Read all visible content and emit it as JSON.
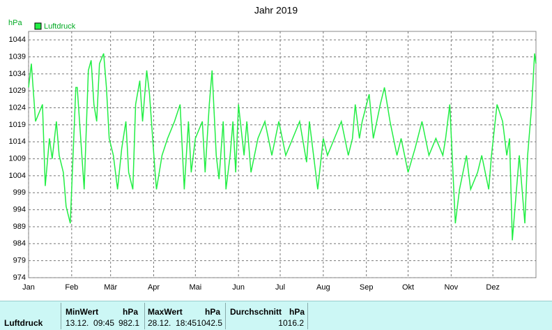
{
  "chart_data": {
    "type": "line",
    "title": "Jahr 2019",
    "ylabel": "hPa",
    "x": [
      0,
      2,
      5,
      10,
      12,
      15,
      17,
      20,
      22,
      25,
      27,
      30,
      31,
      34,
      35,
      40,
      43,
      45,
      47,
      49,
      51,
      54,
      56,
      58,
      61,
      64,
      67,
      70,
      72,
      75,
      77,
      80,
      82,
      85,
      87,
      91,
      92,
      96,
      100,
      105,
      109,
      112,
      115,
      117,
      120,
      125,
      127,
      130,
      132,
      135,
      137,
      140,
      142,
      145,
      147,
      149,
      151,
      155,
      157,
      160,
      165,
      170,
      175,
      180,
      185,
      190,
      195,
      200,
      202,
      205,
      208,
      212,
      215,
      220,
      225,
      230,
      233,
      235,
      238,
      240,
      245,
      248,
      253,
      256,
      260,
      265,
      268,
      273,
      278,
      283,
      288,
      293,
      298,
      300,
      303,
      307,
      310,
      315,
      318,
      323,
      326,
      331,
      333,
      337,
      341,
      344,
      346,
      348,
      351,
      353,
      357,
      359,
      362,
      364,
      365
    ],
    "series": [
      {
        "name": "Luftdruck",
        "color": "#22ee44",
        "values": [
          1030,
          1037,
          1020,
          1025,
          1001,
          1015,
          1009,
          1020,
          1010,
          1005,
          995,
          990,
          1000,
          1030,
          1030,
          1000,
          1035,
          1038,
          1025,
          1020,
          1037,
          1040,
          1030,
          1015,
          1010,
          1000,
          1012,
          1020,
          1005,
          1000,
          1025,
          1032,
          1020,
          1035,
          1028,
          1005,
          1000,
          1010,
          1015,
          1020,
          1025,
          1000,
          1020,
          1005,
          1015,
          1020,
          1005,
          1025,
          1035,
          1010,
          1003,
          1020,
          1000,
          1010,
          1020,
          1005,
          1025,
          1010,
          1020,
          1005,
          1015,
          1020,
          1010,
          1020,
          1010,
          1015,
          1020,
          1008,
          1020,
          1010,
          1000,
          1015,
          1010,
          1015,
          1020,
          1010,
          1015,
          1025,
          1015,
          1020,
          1028,
          1015,
          1025,
          1030,
          1020,
          1010,
          1015,
          1005,
          1012,
          1020,
          1010,
          1015,
          1010,
          1015,
          1025,
          990,
          1000,
          1010,
          1000,
          1005,
          1010,
          1000,
          1010,
          1025,
          1020,
          1010,
          1015,
          985,
          1000,
          1010,
          990,
          1010,
          1025,
          1040,
          1037
        ]
      }
    ],
    "xlim": [
      0,
      365
    ],
    "xticks": [
      {
        "value": 0,
        "label": "Jan"
      },
      {
        "value": 31,
        "label": "Feb"
      },
      {
        "value": 59,
        "label": "Mär"
      },
      {
        "value": 90,
        "label": "Apr"
      },
      {
        "value": 120,
        "label": "Mai"
      },
      {
        "value": 151,
        "label": "Jun"
      },
      {
        "value": 181,
        "label": "Jul"
      },
      {
        "value": 212,
        "label": "Aug"
      },
      {
        "value": 243,
        "label": "Sep"
      },
      {
        "value": 273,
        "label": "Okt"
      },
      {
        "value": 304,
        "label": "Nov"
      },
      {
        "value": 334,
        "label": "Dez"
      }
    ],
    "ylim": [
      974,
      1046.5
    ],
    "yticks": [
      974,
      979,
      984,
      989,
      994,
      999,
      1004,
      1009,
      1014,
      1019,
      1024,
      1029,
      1034,
      1039,
      1044
    ],
    "grid": true,
    "legend": "top-left"
  },
  "stats_table": {
    "row_label": "Luftdruck",
    "min": {
      "header": "MinWert",
      "unit": "hPa",
      "time": "13.12.  09:45",
      "value": 982.1
    },
    "max": {
      "header": "MaxWert",
      "unit": "hPa",
      "time": "28.12.  18:45",
      "value": 1042.5
    },
    "avg": {
      "header": "Durchschnitt",
      "unit": "hPa",
      "value": 1016.2
    }
  }
}
